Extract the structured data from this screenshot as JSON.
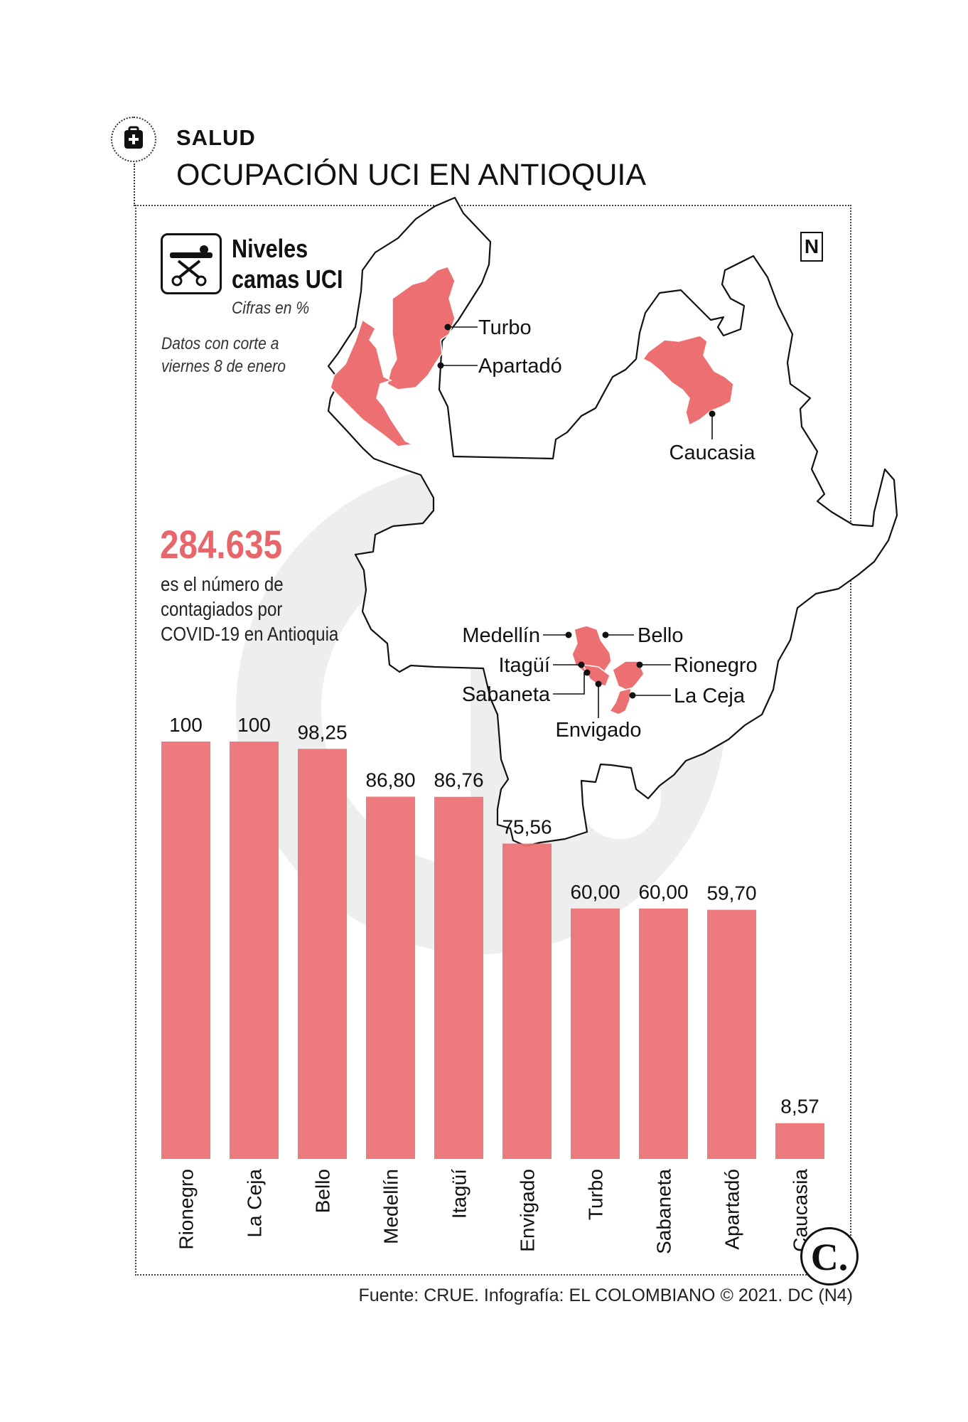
{
  "header": {
    "section": "SALUD",
    "title": "OCUPACIÓN UCI EN ANTIOQUIA"
  },
  "legend": {
    "title_line1": "Niveles",
    "title_line2": "camas UCI",
    "unit": "Cifras en %",
    "note_line1": "Datos con corte a",
    "note_line2": "viernes 8 de enero"
  },
  "highlight": {
    "number": "284.635",
    "caption_line1": "es el número de",
    "caption_line2": "contagiados por",
    "caption_line3": "COVID-19 en Antioquia"
  },
  "map": {
    "labels": [
      "Turbo",
      "Apartadó",
      "Caucasia",
      "Medellín",
      "Bello",
      "Itagüí",
      "Rionegro",
      "Sabaneta",
      "La Ceja",
      "Envigado"
    ],
    "highlight_color": "#ec7072"
  },
  "icons": {
    "header": "medical-kit-icon",
    "legend": "hospital-bed-icon",
    "north": "N",
    "logo": "C."
  },
  "chart_data": {
    "type": "bar",
    "categories": [
      "Rionegro",
      "La Ceja",
      "Bello",
      "Medellín",
      "Itagüí",
      "Envigado",
      "Turbo",
      "Sabaneta",
      "Apartadó",
      "Caucasia"
    ],
    "values": [
      100,
      100,
      98.25,
      86.8,
      86.76,
      75.56,
      60.0,
      60.0,
      59.7,
      8.57
    ],
    "value_labels": [
      "100",
      "100",
      "98,25",
      "86,80",
      "86,76",
      "75,56",
      "60,00",
      "60,00",
      "59,70",
      "8,57"
    ],
    "ylim": [
      0,
      100
    ],
    "bar_color": "#ec7072",
    "title": "",
    "xlabel": "",
    "ylabel": ""
  },
  "footer": {
    "source": "Fuente: CRUE. Infografía: EL COLOMBIANO © 2021. DC (N4)"
  }
}
